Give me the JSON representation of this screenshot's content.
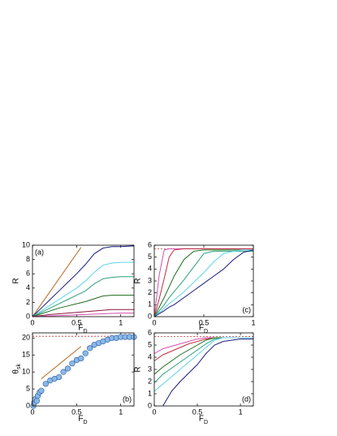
{
  "chart_data": [
    {
      "type": "line",
      "label": "(a)",
      "xlabel": "F",
      "xlabel_sub": "D",
      "ylabel": "R",
      "xlim": [
        0,
        1.15
      ],
      "ylim": [
        0,
        10
      ],
      "xticks": [
        0,
        0.5,
        1
      ],
      "yticks": [
        0,
        2,
        4,
        6,
        8,
        10
      ],
      "series": [
        {
          "color": "#b5651d",
          "x": [
            0,
            0.55
          ],
          "values": [
            0,
            9.7
          ]
        },
        {
          "color": "#1a1a80",
          "x": [
            0,
            0.1,
            0.2,
            0.3,
            0.4,
            0.5,
            0.6,
            0.7,
            0.8,
            0.9,
            1.0,
            1.15
          ],
          "values": [
            0,
            1.2,
            2.4,
            3.6,
            4.8,
            6,
            7.3,
            8.8,
            9.6,
            9.8,
            9.8,
            9.9
          ]
        },
        {
          "color": "#5fd3e8",
          "x": [
            0,
            0.1,
            0.2,
            0.3,
            0.4,
            0.5,
            0.6,
            0.7,
            0.8,
            0.9,
            1.0,
            1.15
          ],
          "values": [
            0,
            0.8,
            1.6,
            2.4,
            3.2,
            4.0,
            5.0,
            6.2,
            7.2,
            7.5,
            7.6,
            7.6
          ]
        },
        {
          "color": "#2aa07a",
          "x": [
            0,
            0.1,
            0.2,
            0.3,
            0.4,
            0.5,
            0.6,
            0.7,
            0.8,
            0.9,
            1.0,
            1.15
          ],
          "values": [
            0,
            0.6,
            1.2,
            1.8,
            2.4,
            3.0,
            3.6,
            4.6,
            5.3,
            5.5,
            5.6,
            5.6
          ]
        },
        {
          "color": "#1d6b1d",
          "x": [
            0,
            0.1,
            0.2,
            0.3,
            0.4,
            0.5,
            0.6,
            0.7,
            0.8,
            0.9,
            1.0,
            1.15
          ],
          "values": [
            0,
            0.4,
            0.8,
            1.2,
            1.5,
            1.8,
            2.1,
            2.5,
            2.9,
            3.0,
            3.0,
            3.0
          ]
        },
        {
          "color": "#8b1a3a",
          "x": [
            0,
            0.1,
            0.2,
            0.3,
            0.4,
            0.5,
            0.6,
            0.7,
            0.8,
            0.9,
            1.0,
            1.15
          ],
          "values": [
            0,
            0.15,
            0.3,
            0.4,
            0.5,
            0.6,
            0.7,
            0.8,
            0.9,
            1.0,
            1.0,
            1.0
          ]
        },
        {
          "color": "#d44fb0",
          "x": [
            0,
            0.1,
            0.2,
            0.3,
            0.4,
            0.5,
            0.6,
            0.7,
            0.8,
            0.9,
            1.0,
            1.15
          ],
          "values": [
            0,
            0.05,
            0.1,
            0.15,
            0.2,
            0.25,
            0.3,
            0.35,
            0.4,
            0.45,
            0.5,
            0.5
          ]
        }
      ]
    },
    {
      "type": "scatter",
      "label": "(b)",
      "xlabel": "F",
      "xlabel_sub": "D",
      "ylabel": "θ",
      "ylabel_sub": "sk",
      "xlim": [
        0,
        1.15
      ],
      "ylim": [
        0,
        21.5
      ],
      "xticks": [
        0,
        0.5,
        1
      ],
      "yticks": [
        0,
        5,
        10,
        15,
        20
      ],
      "series": [
        {
          "color": "#8ab8e8",
          "x": [
            0.01,
            0.02,
            0.03,
            0.05,
            0.06,
            0.08,
            0.1,
            0.15,
            0.2,
            0.25,
            0.3,
            0.35,
            0.4,
            0.45,
            0.5,
            0.55,
            0.6,
            0.65,
            0.7,
            0.75,
            0.8,
            0.85,
            0.9,
            0.95,
            1.0,
            1.05,
            1.1,
            1.15
          ],
          "values": [
            0,
            1,
            2,
            1.5,
            3,
            4,
            4.5,
            6.5,
            7.5,
            8,
            8.5,
            10,
            11,
            12.5,
            13.5,
            14,
            15.5,
            17,
            18,
            18.5,
            19,
            19.5,
            20,
            20,
            20.3,
            20.3,
            20.3,
            20.3
          ]
        }
      ],
      "fit_line": {
        "color": "#b5651d",
        "x": [
          0.1,
          0.55
        ],
        "values": [
          8,
          17.5
        ]
      },
      "hline": {
        "value": 20.5,
        "color": "#d03030"
      }
    },
    {
      "type": "line",
      "label": "(c)",
      "xlabel": "F",
      "xlabel_sub": "D",
      "ylabel": "R",
      "xlim": [
        0,
        1
      ],
      "ylim": [
        0,
        6
      ],
      "xticks": [
        0,
        0.5,
        1
      ],
      "yticks": [
        0,
        1,
        2,
        3,
        4,
        5,
        6
      ],
      "series": [
        {
          "color": "#d44fb0",
          "x": [
            0,
            0.05,
            0.1,
            0.15,
            0.2,
            0.3,
            0.4,
            0.5,
            0.6,
            0.7,
            0.8,
            0.9,
            1.0
          ],
          "values": [
            0,
            3.5,
            5.6,
            5.7,
            5.7,
            5.7,
            5.7,
            5.7,
            5.7,
            5.7,
            5.7,
            5.7,
            5.7
          ]
        },
        {
          "color": "#c03040",
          "x": [
            0,
            0.05,
            0.1,
            0.15,
            0.2,
            0.3,
            0.4,
            0.5,
            0.6,
            0.7,
            0.8,
            0.9,
            1.0
          ],
          "values": [
            0,
            1.5,
            3.2,
            5.0,
            5.6,
            5.7,
            5.7,
            5.7,
            5.7,
            5.7,
            5.7,
            5.7,
            5.7
          ]
        },
        {
          "color": "#1d6b1d",
          "x": [
            0,
            0.05,
            0.1,
            0.15,
            0.2,
            0.3,
            0.4,
            0.5,
            0.6,
            0.7,
            0.8,
            0.9,
            1.0
          ],
          "values": [
            0,
            0.8,
            1.6,
            2.5,
            3.4,
            4.8,
            5.5,
            5.6,
            5.6,
            5.6,
            5.6,
            5.6,
            5.6
          ]
        },
        {
          "color": "#2aa07a",
          "x": [
            0,
            0.05,
            0.1,
            0.15,
            0.2,
            0.3,
            0.4,
            0.5,
            0.6,
            0.7,
            0.8,
            0.9,
            1.0
          ],
          "values": [
            0,
            0.5,
            1.0,
            1.6,
            2.1,
            3.1,
            4.2,
            5.3,
            5.5,
            5.5,
            5.5,
            5.5,
            5.5
          ]
        },
        {
          "color": "#5fd3e8",
          "x": [
            0,
            0.05,
            0.1,
            0.15,
            0.2,
            0.3,
            0.4,
            0.5,
            0.6,
            0.7,
            0.8,
            0.9,
            1.0
          ],
          "values": [
            0,
            0.35,
            0.7,
            1.1,
            1.4,
            2.1,
            2.9,
            3.7,
            4.6,
            5.3,
            5.5,
            5.6,
            5.6
          ]
        },
        {
          "color": "#1a1a80",
          "x": [
            0,
            0.05,
            0.1,
            0.15,
            0.2,
            0.3,
            0.4,
            0.5,
            0.6,
            0.7,
            0.8,
            0.9,
            1.0
          ],
          "values": [
            0,
            0.25,
            0.5,
            0.8,
            1.0,
            1.6,
            2.2,
            2.8,
            3.4,
            4.0,
            4.8,
            5.4,
            5.6
          ]
        }
      ],
      "hline": {
        "value": 5.7,
        "color": "#d03030"
      }
    },
    {
      "type": "line",
      "label": "(d)",
      "xlabel": "F",
      "xlabel_sub": "D",
      "ylabel": "R",
      "xlim": [
        0,
        1.15
      ],
      "ylim": [
        0,
        6
      ],
      "xticks": [
        0,
        0.5,
        1
      ],
      "yticks": [
        0,
        1,
        2,
        3,
        4,
        5,
        6
      ],
      "series": [
        {
          "color": "#d44fb0",
          "x": [
            0,
            0.1,
            0.2,
            0.3,
            0.4,
            0.5,
            0.6,
            0.7,
            0.8,
            0.9,
            1.0,
            1.15
          ],
          "values": [
            4.3,
            4.7,
            4.9,
            5.1,
            5.3,
            5.5,
            5.6,
            5.6,
            5.6,
            5.6,
            5.6,
            5.6
          ]
        },
        {
          "color": "#c03040",
          "x": [
            0,
            0.1,
            0.2,
            0.3,
            0.4,
            0.5,
            0.6,
            0.7,
            0.8,
            0.9,
            1.0,
            1.15
          ],
          "values": [
            3.7,
            4.2,
            4.5,
            4.8,
            5.1,
            5.3,
            5.5,
            5.6,
            5.6,
            5.6,
            5.6,
            5.6
          ]
        },
        {
          "color": "#1d6b1d",
          "x": [
            0,
            0.1,
            0.2,
            0.3,
            0.4,
            0.5,
            0.6,
            0.7,
            0.8,
            0.9,
            1.0,
            1.15
          ],
          "values": [
            2.6,
            3.2,
            3.7,
            4.2,
            4.6,
            5.0,
            5.4,
            5.6,
            5.6,
            5.6,
            5.6,
            5.6
          ]
        },
        {
          "color": "#2aa07a",
          "x": [
            0,
            0.1,
            0.2,
            0.3,
            0.4,
            0.5,
            0.6,
            0.7,
            0.8,
            0.9,
            1.0,
            1.15
          ],
          "values": [
            1.9,
            2.6,
            3.1,
            3.6,
            4.1,
            4.6,
            5.1,
            5.5,
            5.6,
            5.6,
            5.6,
            5.6
          ]
        },
        {
          "color": "#5fd3e8",
          "x": [
            0,
            0.1,
            0.2,
            0.3,
            0.4,
            0.5,
            0.6,
            0.7,
            0.8,
            0.9,
            1.0,
            1.15
          ],
          "values": [
            1.2,
            1.8,
            2.4,
            3.0,
            3.6,
            4.2,
            4.8,
            5.4,
            5.6,
            5.6,
            5.6,
            5.6
          ]
        },
        {
          "color": "#1a1a80",
          "x": [
            0,
            0.1,
            0.2,
            0.3,
            0.4,
            0.5,
            0.6,
            0.7,
            0.8,
            0.9,
            1.0,
            1.15
          ],
          "values": [
            null,
            0,
            1.2,
            2.0,
            2.7,
            3.4,
            4.3,
            5.0,
            5.3,
            5.4,
            5.5,
            5.5
          ]
        }
      ],
      "hline": {
        "value": 5.7,
        "color": "#d03030"
      }
    }
  ]
}
